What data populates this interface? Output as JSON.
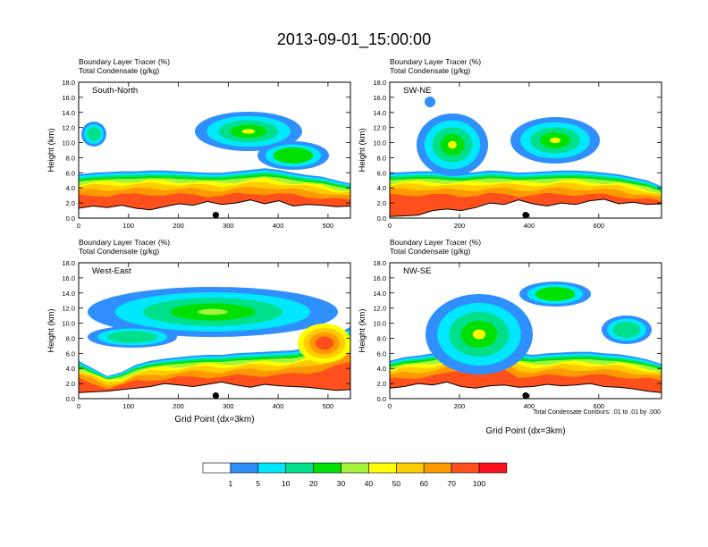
{
  "title": "2013-09-01_15:00:00",
  "colors": {
    "levels": [
      "#ffffff",
      "#2f8ffd",
      "#00e8ff",
      "#00e08a",
      "#00e000",
      "#a3f43a",
      "#ffff00",
      "#ffcc00",
      "#ff9900",
      "#ff4f1c",
      "#ff0f1c"
    ]
  },
  "colorbar": {
    "labels": [
      "1",
      "5",
      "10",
      "20",
      "30",
      "40",
      "50",
      "60",
      "70",
      "100"
    ]
  },
  "chart_data": [
    {
      "type": "heatmap",
      "panel": "South-North",
      "subtitles": [
        "Boundary Layer Tracer   (%)",
        "Total Condensate   (g/kg)"
      ],
      "xlim": [
        0,
        545
      ],
      "ylim": [
        0,
        18
      ],
      "xticks": [
        0,
        100,
        200,
        300,
        400,
        500
      ],
      "xticklabels": [
        "0",
        "100",
        "200",
        "300",
        "400",
        "500"
      ],
      "yticks": [
        0,
        2,
        4,
        6,
        8,
        10,
        12,
        14,
        16,
        18
      ],
      "yticklabels": [
        "0.0",
        "2.0",
        "4.0",
        "6.0",
        "8.0",
        "10.0",
        "12.0",
        "14.0",
        "16.0",
        "18.0"
      ],
      "xlabel": "",
      "ylabel": "Height (km)",
      "marker_x": 275,
      "pbl_top_km": [
        5.8,
        6.0,
        6.1,
        6.2,
        6.2,
        6.3,
        6.3,
        6.2,
        6.1,
        6.0,
        6.0,
        6.2,
        6.4,
        6.6,
        6.4,
        6.0,
        5.7,
        5.5,
        5.0,
        4.6
      ],
      "terrain_km": [
        1.3,
        1.6,
        1.4,
        1.7,
        1.3,
        1.1,
        1.5,
        1.9,
        1.7,
        2.2,
        1.8,
        2.0,
        2.4,
        1.9,
        2.3,
        1.6,
        1.8,
        1.7,
        1.5,
        1.6
      ]
    },
    {
      "type": "heatmap",
      "panel": "SW-NE",
      "subtitles": [
        "Boundary Layer Tracer   (%)",
        "Total Condensate   (g/kg)"
      ],
      "xlim": [
        0,
        780
      ],
      "ylim": [
        0,
        18
      ],
      "xticks": [
        0,
        200,
        400,
        600
      ],
      "xticklabels": [
        "0",
        "200",
        "400",
        "600"
      ],
      "yticks": [
        0,
        2,
        4,
        6,
        8,
        10,
        12,
        14,
        16,
        18
      ],
      "yticklabels": [
        "0.0",
        "2.0",
        "4.0",
        "6.0",
        "8.0",
        "10.0",
        "12.0",
        "14.0",
        "16.0",
        "18.0"
      ],
      "xlabel": "",
      "ylabel": "Height (km)",
      "marker_x": 390,
      "pbl_top_km": [
        6.0,
        6.1,
        6.2,
        6.2,
        6.0,
        5.9,
        6.1,
        6.3,
        6.2,
        6.0,
        6.1,
        6.2,
        6.3,
        6.3,
        6.2,
        6.0,
        5.8,
        5.4,
        5.0,
        4.2
      ],
      "terrain_km": [
        0.2,
        0.3,
        0.4,
        1.0,
        1.2,
        1.0,
        1.4,
        2.0,
        1.8,
        2.4,
        1.9,
        1.6,
        2.0,
        1.8,
        2.3,
        2.5,
        1.9,
        2.1,
        1.8,
        1.9
      ]
    },
    {
      "type": "heatmap",
      "panel": "West-East",
      "subtitles": [
        "Boundary Layer Tracer   (%)",
        "Total Condensate   (g/kg)"
      ],
      "xlim": [
        0,
        545
      ],
      "ylim": [
        0,
        18
      ],
      "xticks": [
        0,
        100,
        200,
        300,
        400,
        500
      ],
      "xticklabels": [
        "0",
        "100",
        "200",
        "300",
        "400",
        "500"
      ],
      "yticks": [
        0,
        2,
        4,
        6,
        8,
        10,
        12,
        14,
        16,
        18
      ],
      "yticklabels": [
        "0.0",
        "2.0",
        "4.0",
        "6.0",
        "8.0",
        "10.0",
        "12.0",
        "14.0",
        "16.0",
        "18.0"
      ],
      "xlabel": "Grid Point (dx=3km)",
      "ylabel": "Height (km)",
      "marker_x": 275,
      "pbl_top_km": [
        5.0,
        4.0,
        3.0,
        3.5,
        4.5,
        5.0,
        5.3,
        5.5,
        5.7,
        5.8,
        5.8,
        6.0,
        6.1,
        6.2,
        6.3,
        6.4,
        6.8,
        7.6,
        8.5,
        9.5
      ],
      "terrain_km": [
        0.8,
        0.9,
        1.0,
        1.2,
        1.4,
        1.6,
        2.0,
        1.8,
        1.6,
        1.9,
        2.2,
        1.8,
        1.5,
        1.9,
        1.7,
        1.6,
        1.5,
        1.3,
        1.1,
        1.2
      ]
    },
    {
      "type": "heatmap",
      "panel": "NW-SE",
      "subtitles": [
        "Boundary Layer Tracer   (%)",
        "Total Condensate   (g/kg)"
      ],
      "xlim": [
        0,
        780
      ],
      "ylim": [
        0,
        18
      ],
      "xticks": [
        0,
        200,
        400,
        600
      ],
      "xticklabels": [
        "0",
        "200",
        "400",
        "600"
      ],
      "yticks": [
        0,
        2,
        4,
        6,
        8,
        10,
        12,
        14,
        16,
        18
      ],
      "yticklabels": [
        "0.0",
        "2.0",
        "4.0",
        "6.0",
        "8.0",
        "10.0",
        "12.0",
        "14.0",
        "16.0",
        "18.0"
      ],
      "xlabel": "Grid Point (dx=3km)",
      "ylabel": "Height (km)",
      "marker_x": 390,
      "pbl_top_km": [
        5.0,
        5.5,
        5.7,
        6.0,
        6.5,
        7.8,
        8.5,
        8.2,
        7.5,
        6.0,
        5.8,
        6.0,
        6.1,
        6.2,
        6.2,
        6.0,
        5.9,
        5.6,
        5.2,
        4.6
      ],
      "terrain_km": [
        1.4,
        1.6,
        2.0,
        1.8,
        2.2,
        1.6,
        1.4,
        1.7,
        1.8,
        1.5,
        1.6,
        1.9,
        1.7,
        1.8,
        2.0,
        1.6,
        1.5,
        1.3,
        1.0,
        0.8
      ],
      "annotation": "Total Condensate Contours: .01 to .01 by .000"
    }
  ]
}
